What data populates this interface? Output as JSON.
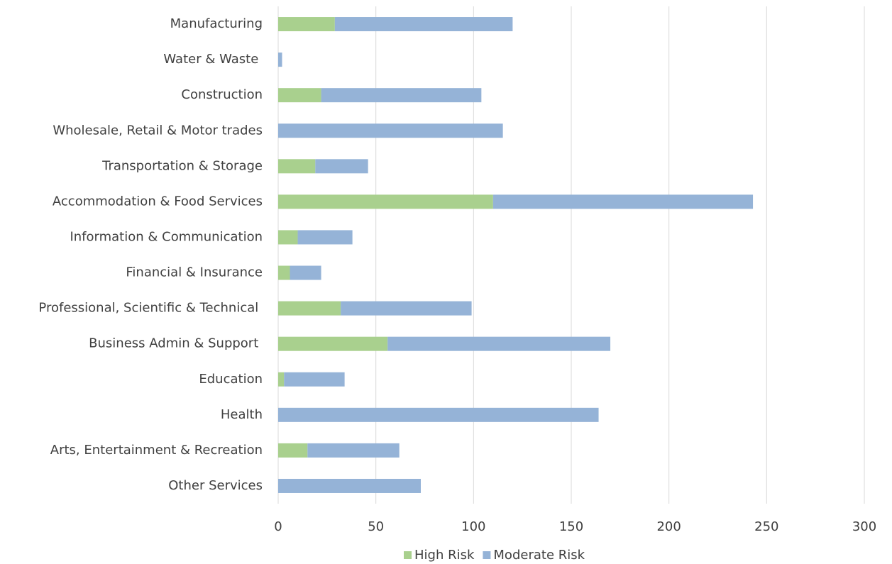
{
  "chart_data": {
    "type": "stacked-barh",
    "categories": [
      "Manufacturing",
      "Water & Waste ",
      "Construction",
      "Wholesale, Retail & Motor trades",
      "Transportation & Storage",
      "Accommodation & Food Services",
      "Information & Communication",
      "Financial & Insurance",
      "Professional, Scientific & Technical ",
      "Business Admin & Support ",
      "Education",
      "Health",
      "Arts, Entertainment & Recreation",
      "Other Services"
    ],
    "series": [
      {
        "name": "High Risk",
        "color": "#a9d08e",
        "values": [
          29,
          0,
          22,
          0,
          19,
          110,
          10,
          6,
          32,
          56,
          3,
          0,
          15,
          0
        ]
      },
      {
        "name": "Moderate Risk",
        "color": "#95b3d7",
        "values": [
          91,
          2,
          82,
          115,
          27,
          133,
          28,
          16,
          67,
          114,
          31,
          164,
          47,
          73
        ]
      }
    ],
    "xlim": [
      0,
      300
    ],
    "xticks": [
      0,
      50,
      100,
      150,
      200,
      250,
      300
    ],
    "grid": true,
    "legend": "bottom"
  }
}
